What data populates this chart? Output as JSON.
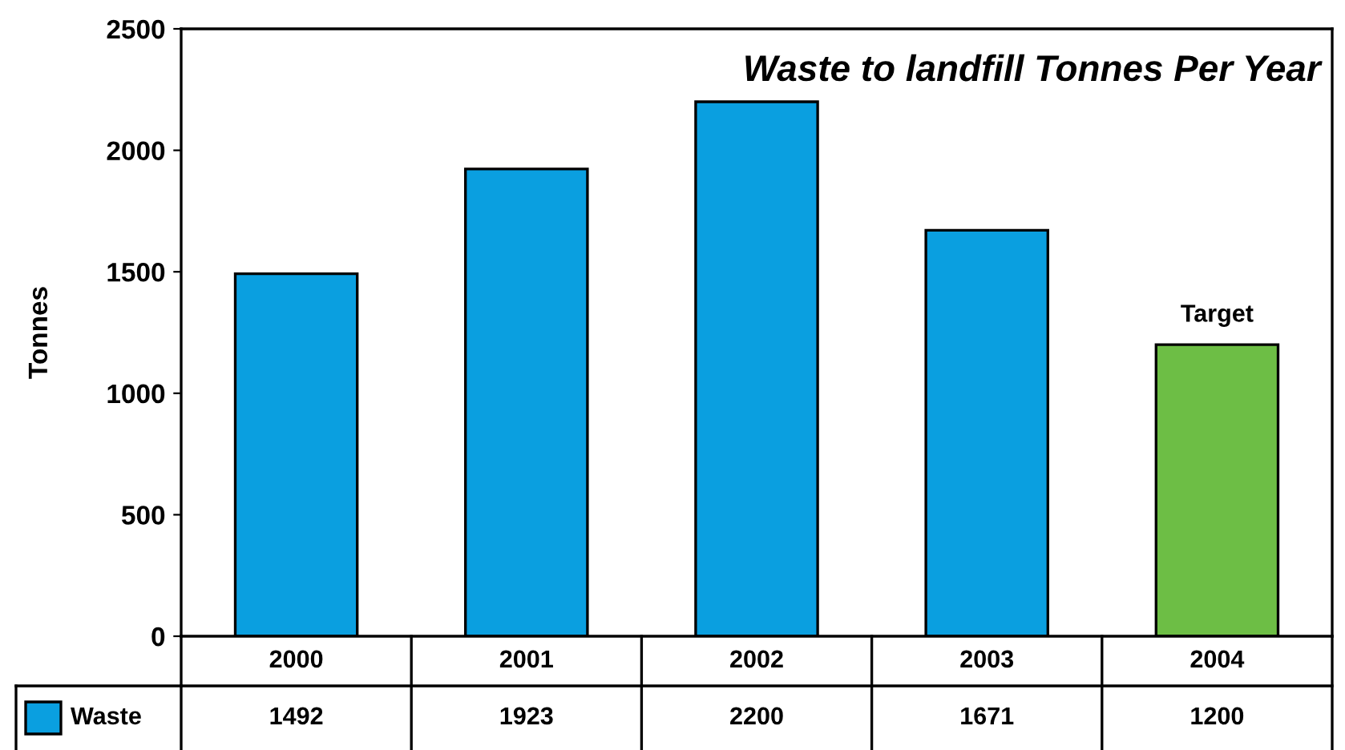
{
  "chart_data": {
    "type": "bar",
    "title": "Waste to landfill Tonnes Per Year",
    "ylabel": "Tonnes",
    "categories": [
      "2000",
      "2001",
      "2002",
      "2003",
      "2004"
    ],
    "series": [
      {
        "name": "Waste",
        "color": "#0a9fe0",
        "colors": [
          "#0a9fe0",
          "#0a9fe0",
          "#0a9fe0",
          "#0a9fe0",
          "#6dbe45"
        ],
        "values": [
          1492,
          1923,
          2200,
          1671,
          1200
        ]
      }
    ],
    "ylim": [
      0,
      2500
    ],
    "yticks": [
      0,
      500,
      1000,
      1500,
      2000,
      2500
    ],
    "grid": false,
    "legend": "bottom",
    "data_labels": true,
    "annotations": [
      {
        "text": "Target",
        "x": "2004",
        "y": 1200
      }
    ]
  }
}
